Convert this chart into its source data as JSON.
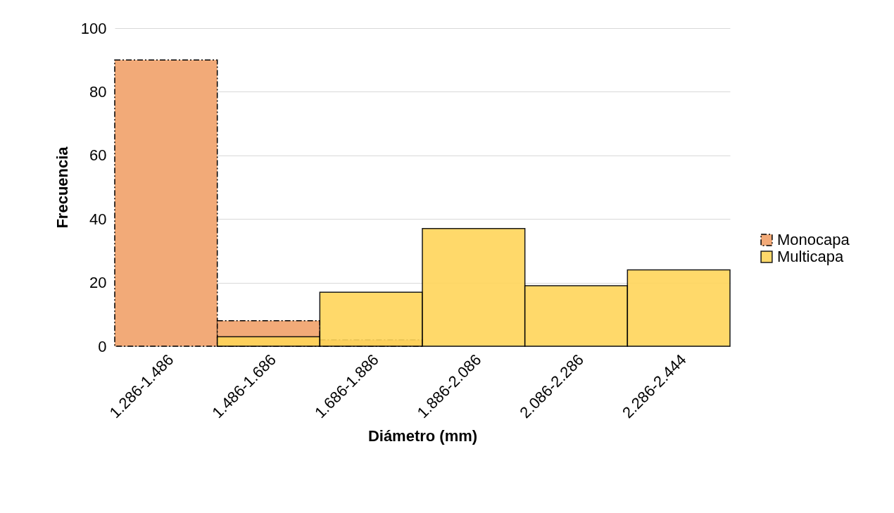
{
  "chart_data": {
    "type": "bar",
    "xlabel": "Diámetro (mm)",
    "ylabel": "Frecuencia",
    "categories": [
      "1.286-1.486",
      "1.486-1.686",
      "1.686-1.886",
      "1.886-2.086",
      "2.086-2.286",
      "2.286-2.444"
    ],
    "series": [
      {
        "name": "Monocapa",
        "color": "#f2aa78",
        "line_style": "dashed",
        "values": [
          90,
          8,
          2,
          0,
          0,
          0
        ]
      },
      {
        "name": "Multicapa",
        "color": "#ffd55a",
        "line_style": "solid",
        "values": [
          0,
          3,
          17,
          37,
          19,
          24
        ]
      }
    ],
    "ylim": [
      0,
      100
    ],
    "yticks": [
      0,
      20,
      40,
      60,
      80,
      100
    ],
    "grid": "y",
    "legend": "right"
  }
}
